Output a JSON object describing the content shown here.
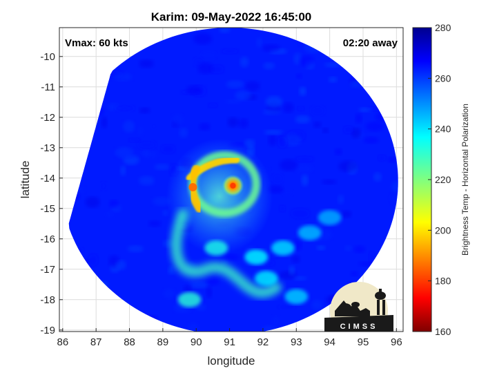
{
  "plot": {
    "title": "Karim: 09-May-2022 16:45:00",
    "vmax_text": "Vmax: 60 kts",
    "away_text": "02:20 away",
    "xlabel": "longitude",
    "ylabel": "latitude",
    "colorbar_label": "Brightness Temp - Horizontal Polarization",
    "logo_text": "CIMSS"
  },
  "chart_data": {
    "type": "heatmap",
    "title": "Karim: 09-May-2022 16:45:00",
    "xlabel": "longitude",
    "ylabel": "latitude",
    "xlim": [
      85.9,
      96.2
    ],
    "ylim": [
      -19.05,
      -9.05
    ],
    "x_ticks": [
      86,
      87,
      88,
      89,
      90,
      91,
      92,
      93,
      94,
      95,
      96
    ],
    "y_ticks": [
      -10,
      -11,
      -12,
      -13,
      -14,
      -15,
      -16,
      -17,
      -18,
      -19
    ],
    "grid": true,
    "colorbar": {
      "label": "Brightness Temp - Horizontal Polarization",
      "min": 160,
      "max": 280,
      "ticks": [
        280,
        260,
        240,
        220,
        200,
        180,
        160
      ],
      "colormap": "jet"
    },
    "background_value": 262,
    "swath": {
      "description": "circular passive-microwave swath",
      "center_lon": 91.0,
      "center_lat": -14.1,
      "radius_deg": 5.05
    },
    "features": [
      {
        "name": "eye",
        "lon": 91.1,
        "lat": -14.25,
        "min_value": 182
      },
      {
        "name": "western eyewall",
        "lon": 89.9,
        "lat": -14.3,
        "min_value": 188
      },
      {
        "name": "northern band",
        "lon": 90.6,
        "lat": -13.4,
        "min_value": 200
      },
      {
        "name": "southern rainband",
        "lon": 90.3,
        "lat": -17.0,
        "min_value": 228
      }
    ]
  }
}
